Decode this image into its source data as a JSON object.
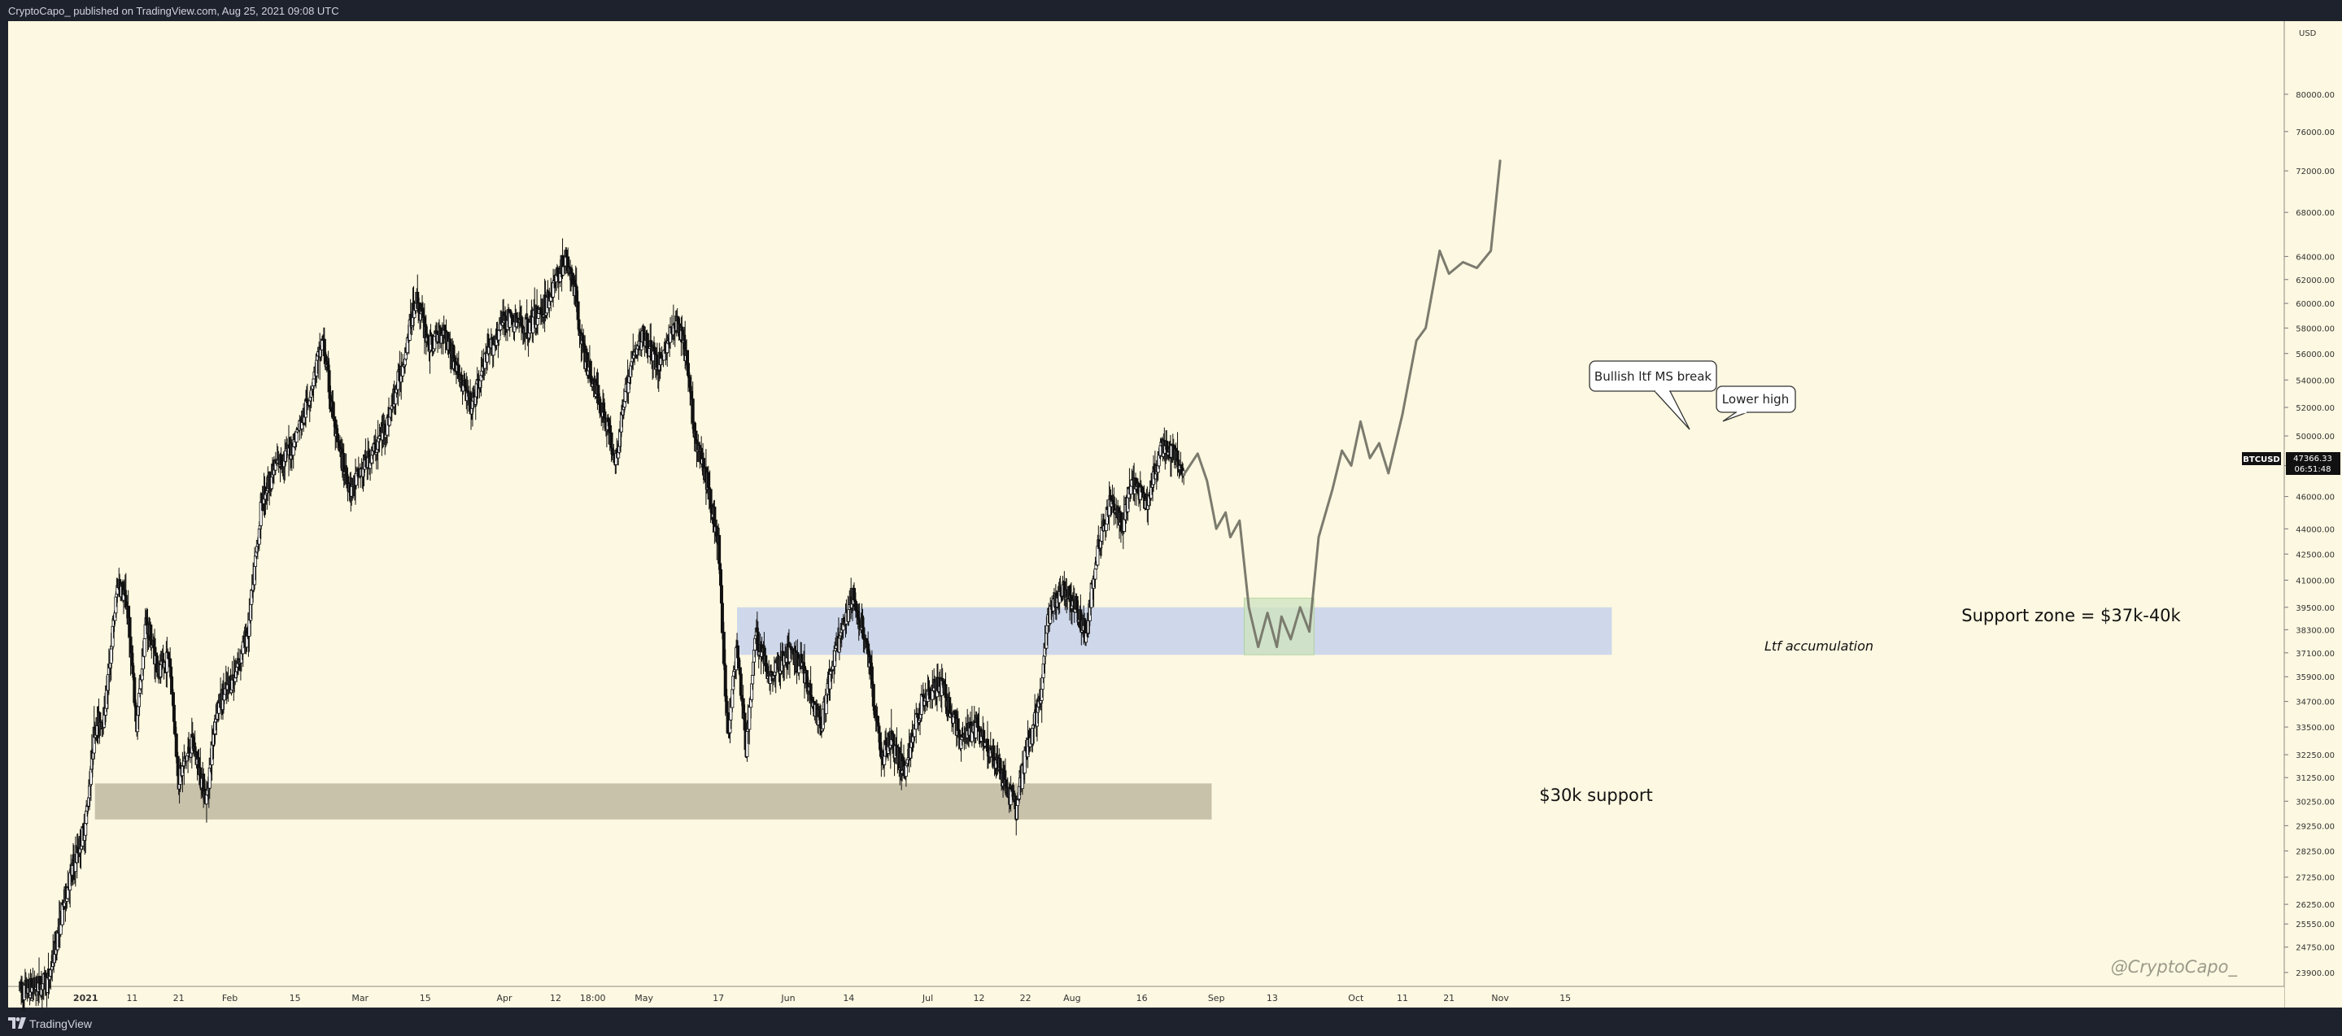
{
  "header": {
    "publish_text": "CryptoCapo_ published on TradingView.com, Aug 25, 2021 09:08 UTC"
  },
  "footer": {
    "brand": "TradingView"
  },
  "price_scale": {
    "corner_label": "USD",
    "ticks": [
      "80000.00",
      "76000.00",
      "72000.00",
      "68000.00",
      "64000.00",
      "62000.00",
      "60000.00",
      "58000.00",
      "56000.00",
      "54000.00",
      "52000.00",
      "50000.00",
      "48000.00",
      "46000.00",
      "44000.00",
      "42500.00",
      "41000.00",
      "39500.00",
      "38300.00",
      "37100.00",
      "35900.00",
      "34700.00",
      "33500.00",
      "32250.00",
      "31250.00",
      "30250.00",
      "29250.00",
      "28250.00",
      "27250.00",
      "26250.00",
      "25550.00",
      "24750.00",
      "23900.00"
    ],
    "symbol_tag": "BTCUSD",
    "last_price": "47366.33",
    "countdown": "06:51:48"
  },
  "time_scale": {
    "ticks": [
      "21",
      "2021",
      "11",
      "21",
      "Feb",
      "15",
      "Mar",
      "15",
      "Apr",
      "12",
      "18:00",
      "May",
      "17",
      "Jun",
      "14",
      "Jul",
      "12",
      "22",
      "Aug",
      "16",
      "Sep",
      "13",
      "Oct",
      "11",
      "21",
      "Nov",
      "15"
    ]
  },
  "annotations": {
    "support_30k": "$30k support",
    "support_zone": "Support zone = $37k-40k",
    "ltf_accumulation": "Ltf accumulation",
    "bullish_break": "Bullish ltf MS break",
    "lower_high": "Lower high",
    "watermark": "@CryptoCapo_"
  },
  "colors": {
    "background": "#fdf8e1",
    "frame": "#1e222d",
    "candle": "#111111",
    "support_30k_zone": "#c9c2ab",
    "support_zone": "#cfd8ea",
    "accumulation_box": "#cfe5c2",
    "projection": "#7b7b6e"
  },
  "chart_data": {
    "type": "candlestick",
    "symbol": "BTCUSD",
    "timeframe": "4h",
    "y_scale": "log",
    "ylim": [
      23500,
      83000
    ],
    "time_range": [
      "2020-12-15",
      "2021-11-25"
    ],
    "current_price": 47366.33,
    "price_path": [
      {
        "date": "2020-12-18",
        "close": 23300
      },
      {
        "date": "2020-12-24",
        "close": 23600
      },
      {
        "date": "2020-12-28",
        "close": 26800
      },
      {
        "date": "2021-01-01",
        "close": 29300
      },
      {
        "date": "2021-01-03",
        "close": 33500
      },
      {
        "date": "2021-01-05",
        "close": 34000
      },
      {
        "date": "2021-01-08",
        "close": 41000
      },
      {
        "date": "2021-01-10",
        "close": 39500
      },
      {
        "date": "2021-01-12",
        "close": 33500
      },
      {
        "date": "2021-01-14",
        "close": 38800
      },
      {
        "date": "2021-01-17",
        "close": 36000
      },
      {
        "date": "2021-01-19",
        "close": 37000
      },
      {
        "date": "2021-01-21",
        "close": 31200
      },
      {
        "date": "2021-01-24",
        "close": 32800
      },
      {
        "date": "2021-01-27",
        "close": 30300
      },
      {
        "date": "2021-01-29",
        "close": 34200
      },
      {
        "date": "2021-02-02",
        "close": 36000
      },
      {
        "date": "2021-02-05",
        "close": 38300
      },
      {
        "date": "2021-02-08",
        "close": 46000
      },
      {
        "date": "2021-02-11",
        "close": 48000
      },
      {
        "date": "2021-02-14",
        "close": 49000
      },
      {
        "date": "2021-02-17",
        "close": 51500
      },
      {
        "date": "2021-02-21",
        "close": 57000
      },
      {
        "date": "2021-02-24",
        "close": 49500
      },
      {
        "date": "2021-02-27",
        "close": 46500
      },
      {
        "date": "2021-03-01",
        "close": 47500
      },
      {
        "date": "2021-03-04",
        "close": 49000
      },
      {
        "date": "2021-03-07",
        "close": 51000
      },
      {
        "date": "2021-03-10",
        "close": 55000
      },
      {
        "date": "2021-03-13",
        "close": 60500
      },
      {
        "date": "2021-03-16",
        "close": 56500
      },
      {
        "date": "2021-03-19",
        "close": 58000
      },
      {
        "date": "2021-03-22",
        "close": 54500
      },
      {
        "date": "2021-03-25",
        "close": 52000
      },
      {
        "date": "2021-03-28",
        "close": 55500
      },
      {
        "date": "2021-04-01",
        "close": 58800
      },
      {
        "date": "2021-04-06",
        "close": 58000
      },
      {
        "date": "2021-04-10",
        "close": 60000
      },
      {
        "date": "2021-04-14",
        "close": 63800
      },
      {
        "date": "2021-04-16",
        "close": 61500
      },
      {
        "date": "2021-04-18",
        "close": 56000
      },
      {
        "date": "2021-04-22",
        "close": 52000
      },
      {
        "date": "2021-04-25",
        "close": 48500
      },
      {
        "date": "2021-04-28",
        "close": 55000
      },
      {
        "date": "2021-05-01",
        "close": 57500
      },
      {
        "date": "2021-05-04",
        "close": 55000
      },
      {
        "date": "2021-05-08",
        "close": 58500
      },
      {
        "date": "2021-05-10",
        "close": 56000
      },
      {
        "date": "2021-05-12",
        "close": 50000
      },
      {
        "date": "2021-05-15",
        "close": 46500
      },
      {
        "date": "2021-05-17",
        "close": 43000
      },
      {
        "date": "2021-05-19",
        "close": 33000
      },
      {
        "date": "2021-05-21",
        "close": 37500
      },
      {
        "date": "2021-05-23",
        "close": 32500
      },
      {
        "date": "2021-05-25",
        "close": 38000
      },
      {
        "date": "2021-05-28",
        "close": 36000
      },
      {
        "date": "2021-06-01",
        "close": 37000
      },
      {
        "date": "2021-06-04",
        "close": 36500
      },
      {
        "date": "2021-06-08",
        "close": 33500
      },
      {
        "date": "2021-06-11",
        "close": 37000
      },
      {
        "date": "2021-06-15",
        "close": 40000
      },
      {
        "date": "2021-06-18",
        "close": 37500
      },
      {
        "date": "2021-06-21",
        "close": 32000
      },
      {
        "date": "2021-06-23",
        "close": 33000
      },
      {
        "date": "2021-06-26",
        "close": 31500
      },
      {
        "date": "2021-06-30",
        "close": 35000
      },
      {
        "date": "2021-07-04",
        "close": 35500
      },
      {
        "date": "2021-07-08",
        "close": 33000
      },
      {
        "date": "2021-07-12",
        "close": 33500
      },
      {
        "date": "2021-07-16",
        "close": 31800
      },
      {
        "date": "2021-07-20",
        "close": 29900
      },
      {
        "date": "2021-07-22",
        "close": 32200
      },
      {
        "date": "2021-07-25",
        "close": 34500
      },
      {
        "date": "2021-07-27",
        "close": 39000
      },
      {
        "date": "2021-07-30",
        "close": 40500
      },
      {
        "date": "2021-08-02",
        "close": 39500
      },
      {
        "date": "2021-08-04",
        "close": 38000
      },
      {
        "date": "2021-08-06",
        "close": 42000
      },
      {
        "date": "2021-08-09",
        "close": 45500
      },
      {
        "date": "2021-08-12",
        "close": 44500
      },
      {
        "date": "2021-08-14",
        "close": 47000
      },
      {
        "date": "2021-08-17",
        "close": 45500
      },
      {
        "date": "2021-08-20",
        "close": 49000
      },
      {
        "date": "2021-08-22",
        "close": 49200
      },
      {
        "date": "2021-08-25",
        "close": 47366
      }
    ],
    "projection_path": [
      {
        "date": "2021-08-25",
        "price": 47400
      },
      {
        "date": "2021-08-28",
        "price": 48800
      },
      {
        "date": "2021-08-30",
        "price": 47000
      },
      {
        "date": "2021-09-01",
        "price": 44000
      },
      {
        "date": "2021-09-03",
        "price": 45000
      },
      {
        "date": "2021-09-04",
        "price": 43500
      },
      {
        "date": "2021-09-06",
        "price": 44500
      },
      {
        "date": "2021-09-08",
        "price": 39500
      },
      {
        "date": "2021-09-10",
        "price": 37400
      },
      {
        "date": "2021-09-12",
        "price": 39200
      },
      {
        "date": "2021-09-14",
        "price": 37400
      },
      {
        "date": "2021-09-15",
        "price": 39000
      },
      {
        "date": "2021-09-17",
        "price": 37800
      },
      {
        "date": "2021-09-19",
        "price": 39500
      },
      {
        "date": "2021-09-21",
        "price": 38200
      },
      {
        "date": "2021-09-23",
        "price": 43500
      },
      {
        "date": "2021-09-26",
        "price": 46500
      },
      {
        "date": "2021-09-28",
        "price": 49000
      },
      {
        "date": "2021-09-30",
        "price": 48000
      },
      {
        "date": "2021-10-02",
        "price": 51000
      },
      {
        "date": "2021-10-04",
        "price": 48500
      },
      {
        "date": "2021-10-06",
        "price": 49500
      },
      {
        "date": "2021-10-08",
        "price": 47500
      },
      {
        "date": "2021-10-11",
        "price": 51500
      },
      {
        "date": "2021-10-14",
        "price": 57000
      },
      {
        "date": "2021-10-16",
        "price": 58000
      },
      {
        "date": "2021-10-19",
        "price": 64500
      },
      {
        "date": "2021-10-21",
        "price": 62500
      },
      {
        "date": "2021-10-24",
        "price": 63500
      },
      {
        "date": "2021-10-27",
        "price": 63000
      },
      {
        "date": "2021-10-30",
        "price": 64500
      },
      {
        "date": "2021-11-01",
        "price": 73000
      }
    ],
    "zones": [
      {
        "start": "2021-01-03",
        "end": "2021-08-31",
        "low": 29500,
        "high": 31000
      },
      {
        "start": "2021-05-21",
        "end": "2021-11-25",
        "low": 37000,
        "high": 39500
      },
      {
        "start": "2021-09-07",
        "end": "2021-09-22",
        "low": 37000,
        "high": 40000
      }
    ]
  }
}
